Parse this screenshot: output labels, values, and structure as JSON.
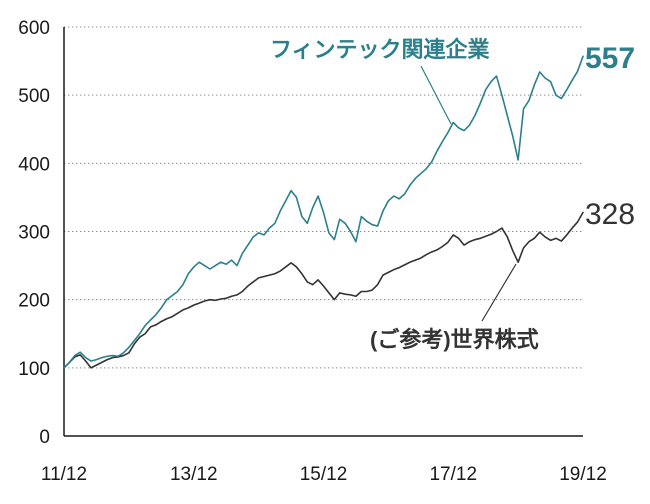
{
  "chart_data": {
    "type": "line",
    "x": [
      "11/12",
      "12/01",
      "12/02",
      "12/03",
      "12/04",
      "12/05",
      "12/06",
      "12/07",
      "12/08",
      "12/09",
      "12/10",
      "12/11",
      "12/12",
      "13/01",
      "13/02",
      "13/03",
      "13/04",
      "13/05",
      "13/06",
      "13/07",
      "13/08",
      "13/09",
      "13/10",
      "13/11",
      "13/12",
      "14/01",
      "14/02",
      "14/03",
      "14/04",
      "14/05",
      "14/06",
      "14/07",
      "14/08",
      "14/09",
      "14/10",
      "14/11",
      "14/12",
      "15/01",
      "15/02",
      "15/03",
      "15/04",
      "15/05",
      "15/06",
      "15/07",
      "15/08",
      "15/09",
      "15/10",
      "15/11",
      "15/12",
      "16/01",
      "16/02",
      "16/03",
      "16/04",
      "16/05",
      "16/06",
      "16/07",
      "16/08",
      "16/09",
      "16/10",
      "16/11",
      "16/12",
      "17/01",
      "17/02",
      "17/03",
      "17/04",
      "17/05",
      "17/06",
      "17/07",
      "17/08",
      "17/09",
      "17/10",
      "17/11",
      "17/12",
      "18/01",
      "18/02",
      "18/03",
      "18/04",
      "18/05",
      "18/06",
      "18/07",
      "18/08",
      "18/09",
      "18/10",
      "18/11",
      "18/12",
      "19/01",
      "19/02",
      "19/03",
      "19/04",
      "19/05",
      "19/06",
      "19/07",
      "19/08",
      "19/09",
      "19/10",
      "19/11",
      "19/12"
    ],
    "xlim": [
      "11/12",
      "19/12"
    ],
    "ylim": [
      0,
      600
    ],
    "x_ticks": [
      "11/12",
      "13/12",
      "15/12",
      "17/12",
      "19/12"
    ],
    "y_ticks": [
      0,
      100,
      200,
      300,
      400,
      500,
      600
    ],
    "grid": true,
    "series": [
      {
        "name": "フィンテック関連企業",
        "color": "#2b808c",
        "end_label": 557,
        "values": [
          100,
          108,
          118,
          123,
          115,
          110,
          112,
          115,
          117,
          118,
          117,
          122,
          130,
          140,
          150,
          162,
          170,
          178,
          188,
          200,
          206,
          212,
          222,
          238,
          248,
          255,
          250,
          245,
          250,
          255,
          252,
          258,
          250,
          268,
          280,
          292,
          298,
          295,
          305,
          312,
          330,
          345,
          360,
          350,
          322,
          312,
          335,
          352,
          328,
          298,
          288,
          318,
          312,
          300,
          285,
          322,
          315,
          310,
          308,
          330,
          345,
          352,
          348,
          355,
          368,
          378,
          385,
          392,
          402,
          418,
          432,
          445,
          460,
          452,
          448,
          456,
          470,
          488,
          508,
          520,
          528,
          500,
          470,
          440,
          405,
          480,
          492,
          515,
          534,
          525,
          520,
          500,
          495,
          508,
          522,
          535,
          557
        ]
      },
      {
        "name": "(ご参考)世界株式",
        "color": "#333333",
        "end_label": 328,
        "values": [
          100,
          108,
          116,
          119,
          110,
          100,
          104,
          108,
          112,
          115,
          116,
          118,
          122,
          135,
          145,
          150,
          160,
          163,
          168,
          172,
          175,
          180,
          185,
          188,
          192,
          195,
          198,
          200,
          199,
          201,
          202,
          205,
          207,
          212,
          220,
          226,
          232,
          234,
          236,
          238,
          242,
          248,
          254,
          248,
          238,
          226,
          222,
          229,
          220,
          210,
          200,
          210,
          208,
          207,
          205,
          212,
          212,
          214,
          222,
          236,
          240,
          244,
          247,
          251,
          255,
          258,
          261,
          266,
          270,
          273,
          278,
          284,
          295,
          290,
          280,
          285,
          288,
          290,
          293,
          296,
          300,
          305,
          292,
          272,
          255,
          276,
          285,
          290,
          299,
          292,
          287,
          290,
          286,
          295,
          305,
          314,
          328
        ]
      }
    ]
  }
}
